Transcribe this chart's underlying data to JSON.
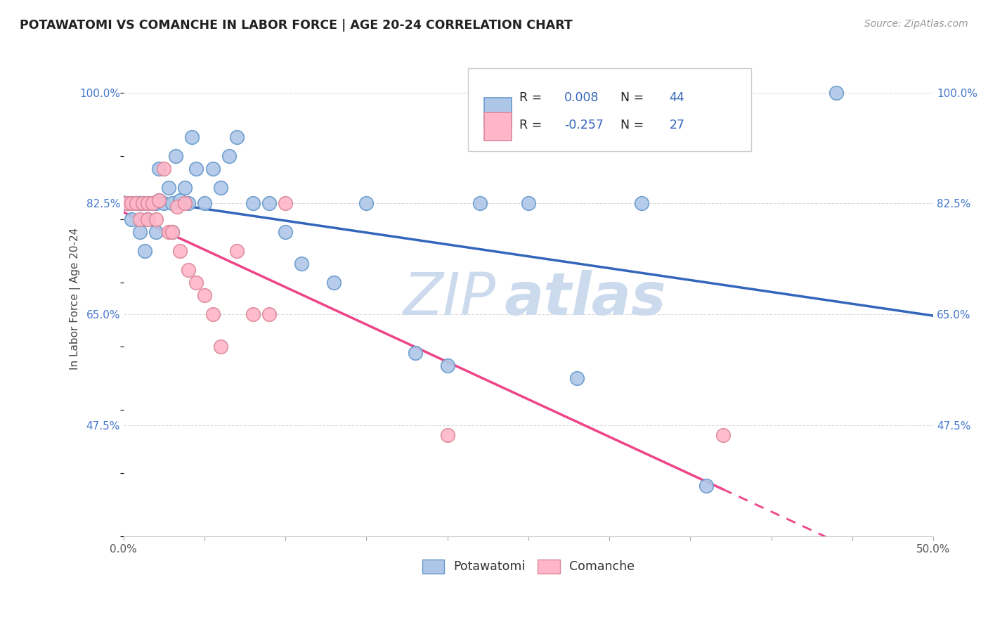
{
  "title": "POTAWATOMI VS COMANCHE IN LABOR FORCE | AGE 20-24 CORRELATION CHART",
  "source": "Source: ZipAtlas.com",
  "ylabel": "In Labor Force | Age 20-24",
  "x_min": 0.0,
  "x_max": 0.5,
  "y_min": 0.3,
  "y_max": 1.05,
  "x_ticks": [
    0.0,
    0.05,
    0.1,
    0.15,
    0.2,
    0.25,
    0.3,
    0.35,
    0.4,
    0.45,
    0.5
  ],
  "x_ticklabels_show": [
    "0.0%",
    "50.0%"
  ],
  "y_ticks": [
    0.475,
    0.65,
    0.825,
    1.0
  ],
  "y_ticklabels": [
    "47.5%",
    "65.0%",
    "82.5%",
    "100.0%"
  ],
  "background_color": "#ffffff",
  "grid_color": "#dddddd",
  "potawatomi_color": "#aec7e8",
  "potawatomi_edge": "#6699cc",
  "comanche_color": "#ffb6c8",
  "comanche_edge": "#dd8899",
  "trend_potawatomi_color": "#3366bb",
  "trend_comanche_color": "#ee4488",
  "R_potawatomi": "0.008",
  "N_potawatomi": "44",
  "R_comanche": "-0.257",
  "N_comanche": "27",
  "legend_label_potawatomi": "Potawatomi",
  "legend_label_comanche": "Comanche",
  "potawatomi_x": [
    0.001,
    0.003,
    0.005,
    0.008,
    0.01,
    0.01,
    0.012,
    0.013,
    0.015,
    0.015,
    0.018,
    0.02,
    0.02,
    0.022,
    0.022,
    0.025,
    0.028,
    0.03,
    0.03,
    0.032,
    0.035,
    0.038,
    0.04,
    0.042,
    0.045,
    0.05,
    0.055,
    0.06,
    0.065,
    0.07,
    0.08,
    0.09,
    0.1,
    0.11,
    0.13,
    0.15,
    0.18,
    0.2,
    0.22,
    0.25,
    0.28,
    0.32,
    0.36,
    0.44
  ],
  "potawatomi_y": [
    0.825,
    0.825,
    0.8,
    0.825,
    0.825,
    0.78,
    0.825,
    0.75,
    0.825,
    0.8,
    0.825,
    0.825,
    0.78,
    0.88,
    0.83,
    0.825,
    0.85,
    0.825,
    0.78,
    0.9,
    0.83,
    0.85,
    0.825,
    0.93,
    0.88,
    0.825,
    0.88,
    0.85,
    0.9,
    0.93,
    0.825,
    0.825,
    0.78,
    0.73,
    0.7,
    0.825,
    0.59,
    0.57,
    0.825,
    0.825,
    0.55,
    0.825,
    0.38,
    1.0
  ],
  "comanche_x": [
    0.002,
    0.005,
    0.008,
    0.01,
    0.012,
    0.015,
    0.015,
    0.018,
    0.02,
    0.022,
    0.025,
    0.028,
    0.03,
    0.033,
    0.035,
    0.038,
    0.04,
    0.045,
    0.05,
    0.055,
    0.06,
    0.07,
    0.08,
    0.09,
    0.1,
    0.2,
    0.37
  ],
  "comanche_y": [
    0.825,
    0.825,
    0.825,
    0.8,
    0.825,
    0.825,
    0.8,
    0.825,
    0.8,
    0.83,
    0.88,
    0.78,
    0.78,
    0.82,
    0.75,
    0.825,
    0.72,
    0.7,
    0.68,
    0.65,
    0.6,
    0.75,
    0.65,
    0.65,
    0.825,
    0.46,
    0.46
  ],
  "watermark_line1": "ZIP",
  "watermark_line2": "atlas",
  "watermark_color": "#ccdaee"
}
